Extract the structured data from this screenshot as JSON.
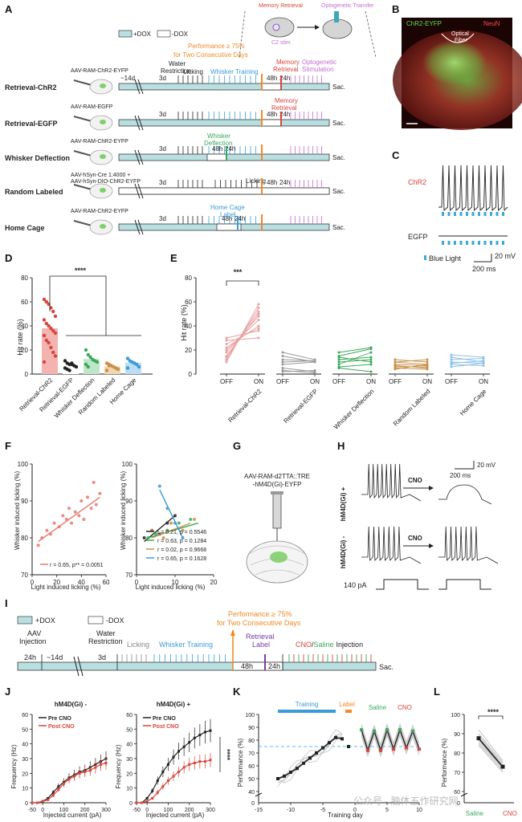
{
  "panels": {
    "a": "A",
    "b": "B",
    "c": "C",
    "d": "D",
    "e": "E",
    "f": "F",
    "g": "G",
    "h": "H",
    "i": "I",
    "j": "J",
    "k": "K",
    "l": "L"
  },
  "colors": {
    "teal": "#b9dfe1",
    "red": "#d9443b",
    "pink": "#e8a0a0",
    "orange": "#f08a24",
    "blue": "#3a9bd6",
    "green": "#3aa95b",
    "magenta": "#c36bd0",
    "purple": "#7a3fa0",
    "gray": "#8a8a8a",
    "brown": "#c9904a",
    "black": "#222222"
  },
  "panelA": {
    "legend_dox_plus": "+DOX",
    "legend_dox_minus": "-DOX",
    "performance_line1": "Performance ≥ 75%",
    "performance_line2": "for Two Consecutive Days",
    "inset_memory_retrieval": "Memory Retrieval",
    "inset_optogenetic_transfer": "Optogenetic Transfer",
    "inset_c2_stim": "C2 stim",
    "rows": [
      {
        "name": "Retrieval-ChR2",
        "virus": "AAV-RAM-ChR2-EYFP"
      },
      {
        "name": "Retrieval-EGFP",
        "virus": "AAV-RAM-EGFP"
      },
      {
        "name": "Whisker Deflection",
        "virus": "AAV-RAM-ChR2-EYFP"
      },
      {
        "name": "Random Labeled",
        "virus": "AAV-hSyn-Cre 1:4000 +",
        "virus2": "AAV-hSyn-DIO-ChR2-EYFP"
      },
      {
        "name": "Home Cage",
        "virus": "AAV-RAM-ChR2-EYFP"
      }
    ],
    "labels": {
      "d14": "~14d",
      "d3": "3d",
      "h48": "48h",
      "h24": "24h",
      "sac": "Sac.",
      "water_restriction_1": "Water",
      "water_restriction_2": "Restriction",
      "licking": "Licking",
      "whisker_training": "Whisker Training",
      "memory_retrieval_1": "Memory",
      "memory_retrieval_2": "Retrieval",
      "optogenetic_1": "Optogenetic",
      "optogenetic_2": "Stimulation",
      "whisker_deflection_1": "Whisker",
      "whisker_deflection_2": "Deflection",
      "home_cage_1": "Home Cage",
      "home_cage_2": "Label"
    }
  },
  "panelB": {
    "chr2": "ChR2-EYFP",
    "neun": "NeuN",
    "fiber_1": "Optical",
    "fiber_2": "Fiber"
  },
  "panelC": {
    "chr2": "ChR2",
    "egfp": "EGFP",
    "blue_light": "Blue Light",
    "scale_v": "20 mV",
    "scale_t": "200 ms"
  },
  "panelD": {
    "ylabel": "Hit rate (%)",
    "sig": "****",
    "chart_data": {
      "type": "bar",
      "categories": [
        "Retrieval-ChR2",
        "Retrieval-EGFP",
        "Whisker Deflection",
        "Random Labeled",
        "Home Cage"
      ],
      "values": [
        38,
        7.5,
        12.5,
        6.5,
        9.5
      ],
      "ylim": [
        0,
        80
      ],
      "yticks": [
        0,
        20,
        40,
        60,
        80
      ],
      "points": [
        [
          62,
          60,
          58,
          55,
          52,
          48,
          45,
          42,
          40,
          38,
          36,
          34,
          32,
          28,
          26,
          22,
          18,
          15,
          10
        ],
        [
          11,
          9,
          8,
          8,
          7,
          6,
          5,
          4,
          3,
          9
        ],
        [
          20,
          16,
          14,
          12,
          11,
          10,
          8,
          6
        ],
        [
          9,
          8,
          7,
          6,
          5,
          4,
          3,
          7
        ],
        [
          13,
          11,
          10,
          9,
          8,
          6,
          5
        ]
      ]
    }
  },
  "panelE": {
    "ylabel": "Hit rate (%)",
    "sig": "***",
    "chart_data": {
      "type": "line",
      "groups": [
        "Retrieval-ChR2",
        "Retrieval-EGFP",
        "Whisker Deflection",
        "Random Labeled",
        "Home Cage"
      ],
      "x_labels": [
        "OFF",
        "ON"
      ],
      "ylim": [
        0,
        80
      ],
      "yticks": [
        0,
        20,
        40,
        60,
        80
      ],
      "pairs": [
        [
          [
            10,
            58
          ],
          [
            12,
            55
          ],
          [
            15,
            52
          ],
          [
            18,
            48
          ],
          [
            20,
            45
          ],
          [
            22,
            40
          ],
          [
            25,
            38
          ],
          [
            28,
            30
          ],
          [
            30,
            36
          ],
          [
            14,
            50
          ]
        ],
        [
          [
            18,
            12
          ],
          [
            15,
            10
          ],
          [
            12,
            11
          ],
          [
            8,
            10
          ],
          [
            5,
            2
          ],
          [
            3,
            1
          ],
          [
            2,
            3
          ],
          [
            10,
            11
          ]
        ],
        [
          [
            18,
            22
          ],
          [
            15,
            21
          ],
          [
            12,
            14
          ],
          [
            10,
            12
          ],
          [
            8,
            18
          ],
          [
            5,
            2
          ],
          [
            6,
            8
          ],
          [
            14,
            10
          ]
        ],
        [
          [
            12,
            10
          ],
          [
            10,
            12
          ],
          [
            8,
            7
          ],
          [
            6,
            6
          ],
          [
            5,
            4
          ],
          [
            4,
            8
          ],
          [
            7,
            5
          ],
          [
            10,
            8
          ]
        ],
        [
          [
            16,
            14
          ],
          [
            14,
            10
          ],
          [
            12,
            13
          ],
          [
            10,
            9
          ],
          [
            9,
            11
          ],
          [
            8,
            7
          ],
          [
            6,
            9
          ]
        ]
      ]
    }
  },
  "panelF": {
    "xlabel": "Light induced licking (%)",
    "ylabel": "Whisker induced licking (%)",
    "left": {
      "chart_data": {
        "type": "scatter",
        "xlim": [
          0,
          60
        ],
        "ylim": [
          70,
          100
        ],
        "xticks": [
          0,
          20,
          40,
          60
        ],
        "yticks": [
          70,
          80,
          90,
          100
        ],
        "x": [
          5,
          8,
          12,
          15,
          18,
          22,
          25,
          28,
          30,
          32,
          35,
          38,
          40,
          42,
          45,
          48,
          50,
          52,
          55
        ],
        "y": [
          78,
          80,
          82,
          81,
          84,
          83,
          86,
          85,
          88,
          84,
          87,
          86,
          90,
          85,
          91,
          88,
          95,
          89,
          92
        ],
        "fit": [
          [
            5,
            79
          ],
          [
            55,
            91
          ]
        ]
      },
      "legend": "r = 0.65, p** = 0.0051"
    },
    "right": {
      "chart_data": {
        "type": "scatter",
        "xlim": [
          0,
          20
        ],
        "ylim": [
          70,
          100
        ],
        "xticks": [
          0,
          10,
          20
        ],
        "yticks": [
          70,
          80,
          90,
          100
        ],
        "series": [
          {
            "x": [
              2,
              4,
              6,
              8,
              10
            ],
            "y": [
              80,
              82,
              81,
              84,
              86
            ],
            "fit": [
              [
                2,
                79
              ],
              [
                10,
                86
              ]
            ]
          },
          {
            "x": [
              3,
              5,
              8,
              11,
              14
            ],
            "y": [
              80,
              81,
              82,
              84,
              85
            ],
            "fit": [
              [
                3,
                80
              ],
              [
                16,
                84
              ]
            ]
          },
          {
            "x": [
              4,
              7,
              9,
              12,
              15
            ],
            "y": [
              82,
              80,
              84,
              82,
              85
            ],
            "fit": [
              [
                4,
                80
              ],
              [
                14,
                84
              ]
            ]
          },
          {
            "x": [
              6,
              8,
              10,
              12
            ],
            "y": [
              94,
              88,
              84,
              80
            ],
            "fit": [
              [
                6,
                93
              ],
              [
                12,
                80
              ]
            ]
          }
        ]
      },
      "legend": [
        "r = 0.21, p = 0.5546",
        "r = 0.63, p = 0.1284",
        "r = 0.02, p = 0.9668",
        "r = 0.65, p = 0.1628"
      ]
    }
  },
  "panelG": {
    "line1": "AAV-RAM-d2TTA::TRE",
    "line2": "-hM4D(Gi)-EYFP"
  },
  "panelH": {
    "plus": "hM4D(Gi) +",
    "minus": "hM4D(Gi) -",
    "cno": "CNO",
    "current": "140 pA",
    "scale_v": "20 mV",
    "scale_t": "200 ms"
  },
  "panelI": {
    "dox_plus": "+DOX",
    "dox_minus": "-DOX",
    "performance_1": "Performance ≥ 75%",
    "performance_2": "for Two Consecutive Days",
    "aav_1": "AAV",
    "aav_2": "Injection",
    "water_1": "Water",
    "water_2": "Restriction",
    "licking": "Licking",
    "whisker_training": "Whisker Training",
    "retrieval_1": "Retrieval",
    "retrieval_2": "Label",
    "cno": "CNO",
    "slash": "/",
    "saline": "Saline",
    "injection": "Injection",
    "h24": "24h",
    "d14": "~14d",
    "d3": "3d",
    "h48": "48h",
    "h24b": "24h",
    "sac": "Sac."
  },
  "panelJ": {
    "left_title": "hM4D(Gi) -",
    "right_title": "hM4D(Gi) +",
    "ylabel": "Frequency (Hz)",
    "xlabel": "Injected current (pA)",
    "pre": "Pre CNO",
    "post": "Post CNO",
    "sig": "****",
    "chart_data": {
      "type": "line",
      "x": [
        -50,
        -25,
        0,
        25,
        50,
        75,
        100,
        125,
        150,
        175,
        200,
        225,
        250,
        275,
        300
      ],
      "xticks": [
        -50,
        0,
        100,
        200,
        300
      ],
      "yticks": [
        0,
        10,
        20,
        30,
        40,
        50,
        60
      ],
      "ylim": [
        0,
        60
      ],
      "left_pre": [
        0,
        0,
        1,
        3,
        7,
        11,
        14,
        17,
        19,
        21,
        22,
        24,
        26,
        28,
        30
      ],
      "left_post": [
        0,
        0,
        1,
        2,
        5,
        9,
        13,
        16,
        18,
        20,
        21,
        22,
        24,
        26,
        27
      ],
      "right_pre": [
        0,
        0,
        3,
        8,
        15,
        21,
        26,
        31,
        35,
        38,
        41,
        44,
        46,
        48,
        49
      ],
      "right_post": [
        0,
        0,
        1,
        3,
        7,
        11,
        15,
        18,
        21,
        24,
        26,
        27,
        28,
        28,
        29
      ]
    }
  },
  "panelK": {
    "training": "Training",
    "label": "Label",
    "saline": "Saline",
    "cno": "CNO",
    "ylabel": "Performance (%)",
    "xlabel": "Training day",
    "chart_data": {
      "type": "line",
      "xlim": [
        -15,
        10
      ],
      "ylim": [
        40,
        100
      ],
      "xticks": [
        -15,
        -10,
        -5,
        0,
        5,
        10
      ],
      "yticks": [
        40,
        50,
        60,
        70,
        80,
        90,
        100
      ],
      "training_x": [
        -12,
        -11,
        -10,
        -9,
        -8,
        -7,
        -6,
        -5,
        -4,
        -3,
        -2
      ],
      "training_y": [
        50,
        52,
        55,
        58,
        62,
        66,
        70,
        74,
        78,
        82,
        81
      ],
      "label_x": [
        -1
      ],
      "label_y": [
        75
      ],
      "test_x": [
        1,
        2,
        3,
        4,
        5,
        6,
        7,
        8,
        9,
        10
      ],
      "test_y": [
        88,
        72,
        87,
        72,
        88,
        73,
        88,
        74,
        87,
        73
      ],
      "threshold": 75
    }
  },
  "panelL": {
    "ylabel": "Performance (%)",
    "sig": "****",
    "saline": "Saline",
    "cno": "CNO",
    "chart_data": {
      "type": "line",
      "ylim": [
        0,
        100
      ],
      "yticks": [
        60,
        70,
        80,
        90,
        100
      ],
      "saline": [
        92,
        90,
        89,
        88,
        87,
        86,
        85,
        84
      ],
      "cno": [
        76,
        75,
        74,
        73,
        72,
        72,
        71,
        70
      ]
    }
  },
  "watermark": "公众号 · 脑体五作研究网"
}
